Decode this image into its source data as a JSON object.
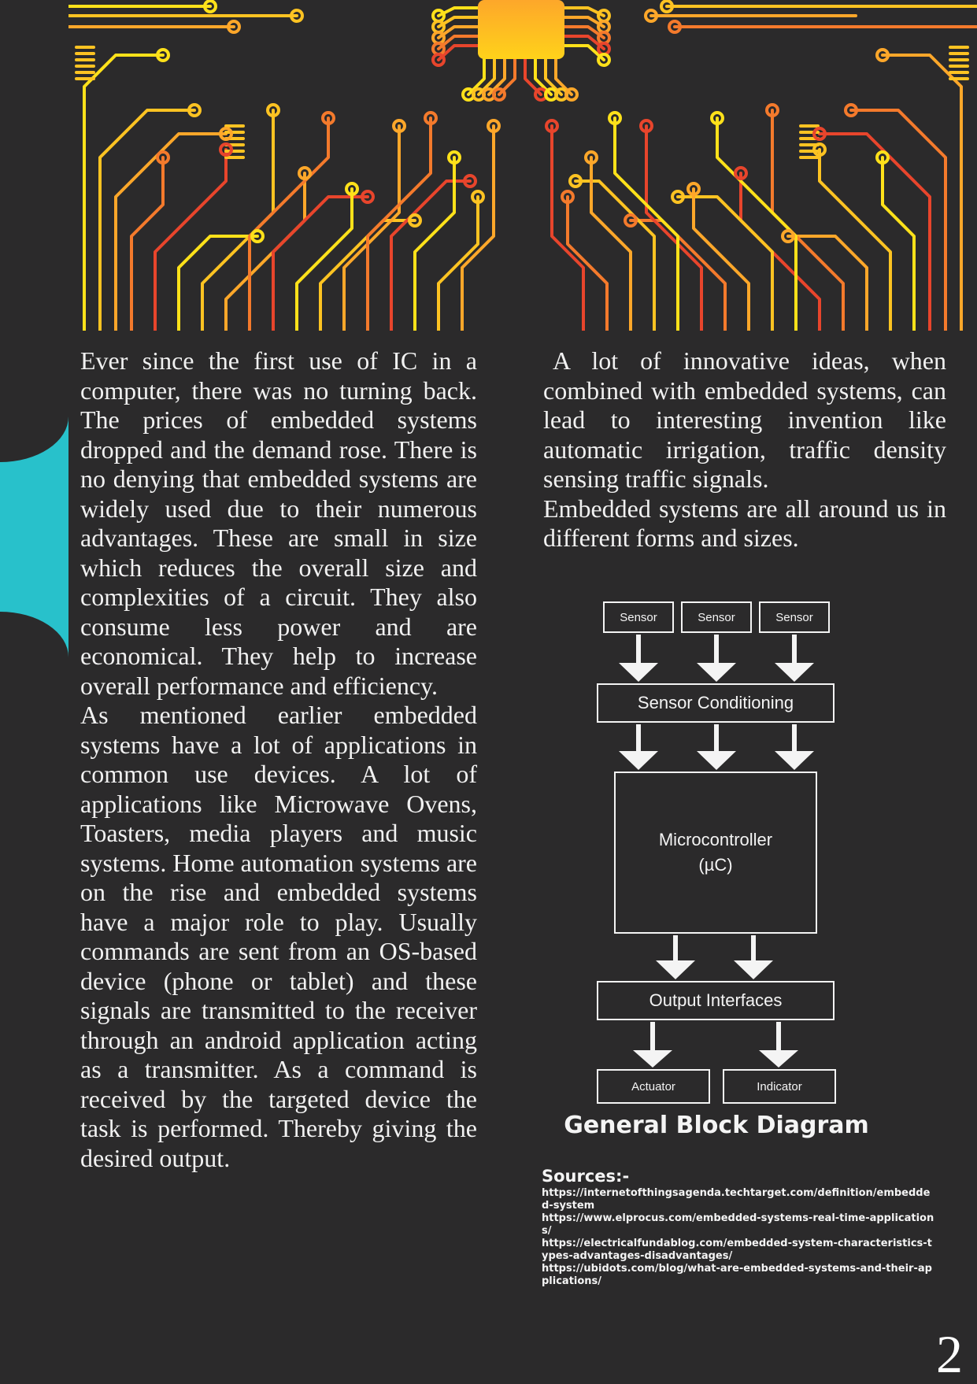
{
  "left_column": {
    "paragraphs": [
      "Ever since the first use of IC in a computer, there was no turning back. The prices of embedded systems dropped and the demand rose. There is no denying that embedded systems are widely used due to their numerous advantages. These are small in size which reduces the overall size and complexities of a circuit. They also consume less power and are economical. They help to increase overall performance and efficiency.",
      "As mentioned earlier embedded systems have a lot of applications in common use devices. A lot of applications like Microwave Ovens, Toasters, media players and music systems. Home automation systems are on the rise and embedded systems have a major role to play. Usually commands are sent from an OS-based device (phone or tablet) and these signals are transmitted to the receiver through an android application acting as a transmitter. As a command is received by the targeted device the task is performed. Thereby giving the desired output."
    ]
  },
  "right_column": {
    "paragraphs": [
      "A lot of innovative ideas, when combined with embedded systems, can lead to interesting invention like automatic irrigation, traffic density sensing traffic signals.",
      "Embedded systems are all around us in different forms and sizes."
    ]
  },
  "diagram": {
    "title": "General Block Diagram",
    "sensors": [
      "Sensor",
      "Sensor",
      "Sensor"
    ],
    "conditioning": "Sensor Conditioning",
    "controller_line1": "Microcontroller",
    "controller_line2": "(µC)",
    "output": "Output Interfaces",
    "actuator": "Actuator",
    "indicator": "Indicator"
  },
  "sources": {
    "title": "Sources:-",
    "links": [
      "https://internetofthingsagenda.techtarget.com/definition/embedded-system",
      "https://www.elprocus.com/embedded-systems-real-time-applications/",
      "https://electricalfundablog.com/embedded-system-characteristics-types-advantages-disadvantages/",
      "https://ubidots.com/blog/what-are-embedded-systems-and-their-applications/"
    ]
  },
  "page_number": "2",
  "colors": {
    "background": "#2b2a2b",
    "accent_band": "#28c1cb",
    "circuit_gradient": [
      "#ffe11a",
      "#fda72a",
      "#e8452c"
    ],
    "text": "#f1f1f1"
  }
}
